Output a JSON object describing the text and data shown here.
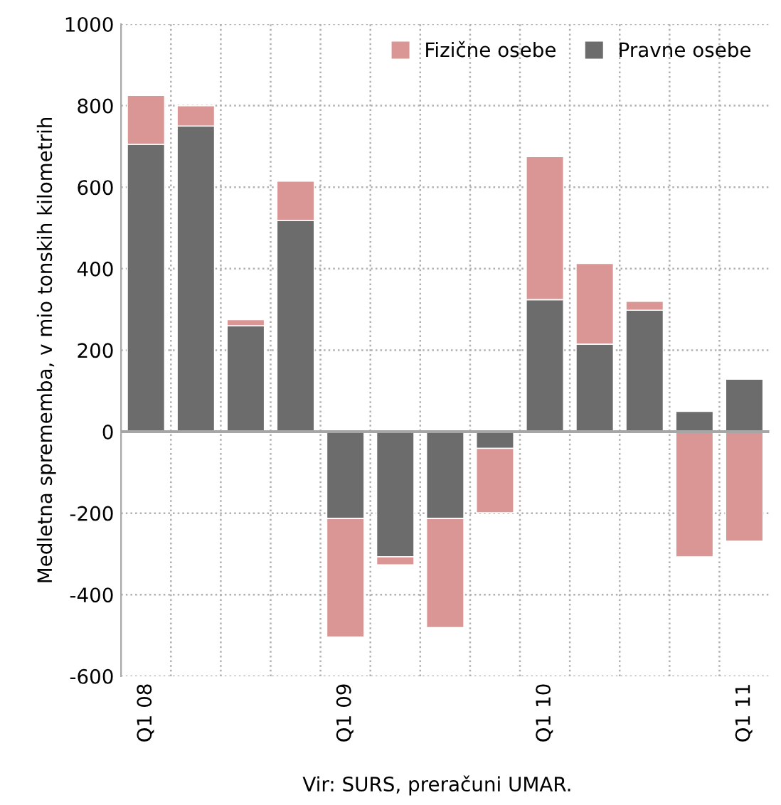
{
  "chart_data": {
    "type": "bar",
    "stacked": true,
    "ylabel": "Medletna sprememba, v mio tonskih kilometrih",
    "annotations": [
      "Vir: SURS, preračuni UMAR."
    ],
    "categories": [
      "Q1 08",
      null,
      null,
      null,
      "Q1 09",
      null,
      null,
      null,
      "Q1 10",
      null,
      null,
      null,
      "Q1 11"
    ],
    "series": [
      {
        "name": "Pravne osebe",
        "color": "#6b6c6b",
        "values": [
          705,
          750,
          260,
          518,
          -213,
          -307,
          -213,
          -41,
          324,
          215,
          298,
          50,
          129
        ]
      },
      {
        "name": "Fizične osebe",
        "color": "#d99694",
        "values": [
          120,
          50,
          15,
          97,
          -291,
          -20,
          -268,
          -158,
          351,
          198,
          22,
          -307,
          -269
        ]
      }
    ],
    "ylim": [
      -600,
      1000
    ],
    "yticks": [
      -600,
      -400,
      -200,
      0,
      200,
      400,
      600,
      800,
      1000
    ],
    "grid": true,
    "legend": "top right"
  }
}
